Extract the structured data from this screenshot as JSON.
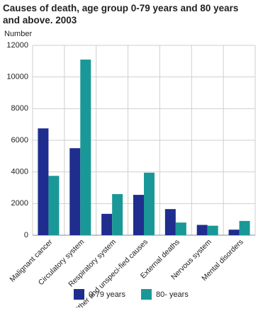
{
  "chart_data": {
    "type": "bar",
    "title": "Causes of death, age group 0-79 years and 80 years and above. 2003",
    "y_label": "Number",
    "categories": [
      "Malignant cancer",
      "Circulatory system",
      "Respiratory system",
      "Other and unspeci-fied causes",
      "External deaths",
      "Nervous system",
      "Mental disorders"
    ],
    "series": [
      {
        "name": "0-79 years",
        "color": "#1f2d8e",
        "values": [
          6750,
          5500,
          1350,
          2550,
          1650,
          650,
          350
        ]
      },
      {
        "name": "80- years",
        "color": "#1a9898",
        "values": [
          3750,
          11100,
          2600,
          3950,
          800,
          600,
          900
        ]
      }
    ],
    "ylim": [
      0,
      12000
    ],
    "yticks": [
      0,
      2000,
      4000,
      6000,
      8000,
      10000,
      12000
    ],
    "grid": true,
    "legend": "bottom"
  }
}
